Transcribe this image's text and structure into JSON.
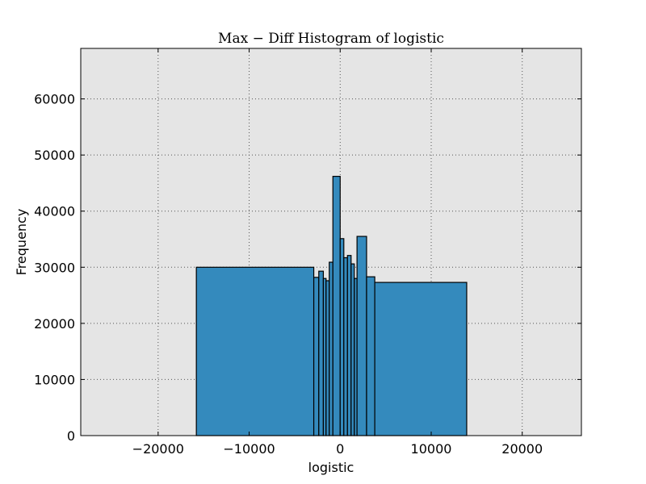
{
  "chart_data": {
    "type": "bar",
    "title": "Max − Diff Histogram of logistic",
    "xlabel": "logistic",
    "ylabel": "Frequency",
    "xlim": [
      -28500,
      26500
    ],
    "ylim": [
      0,
      69000
    ],
    "grid": true,
    "colors": {
      "bar_fill": "#348ABD",
      "bar_edge": "#000000",
      "plot_bg": "#E5E5E5",
      "grid": "#555555"
    },
    "xticks": [
      -20000,
      -10000,
      0,
      10000,
      20000
    ],
    "xtick_labels": [
      "−20000",
      "−10000",
      "0",
      "10000",
      "20000"
    ],
    "yticks": [
      0,
      10000,
      20000,
      30000,
      40000,
      50000,
      60000
    ],
    "ytick_labels": [
      "0",
      "10000",
      "20000",
      "30000",
      "40000",
      "50000",
      "60000"
    ],
    "bins": [
      {
        "x0": -15800,
        "x1": -2900,
        "value": 30000
      },
      {
        "x0": -2900,
        "x1": -2350,
        "value": 28200
      },
      {
        "x0": -2350,
        "x1": -1850,
        "value": 29300
      },
      {
        "x0": -1850,
        "x1": -1550,
        "value": 28000
      },
      {
        "x0": -1550,
        "x1": -1200,
        "value": 27600
      },
      {
        "x0": -1200,
        "x1": -800,
        "value": 30900
      },
      {
        "x0": -800,
        "x1": 0,
        "value": 46200
      },
      {
        "x0": 0,
        "x1": 400,
        "value": 35100
      },
      {
        "x0": 400,
        "x1": 800,
        "value": 31700
      },
      {
        "x0": 800,
        "x1": 1200,
        "value": 32100
      },
      {
        "x0": 1200,
        "x1": 1550,
        "value": 30600
      },
      {
        "x0": 1550,
        "x1": 1850,
        "value": 28000
      },
      {
        "x0": 1850,
        "x1": 2900,
        "value": 35500
      },
      {
        "x0": 2900,
        "x1": 3800,
        "value": 28300
      },
      {
        "x0": 3800,
        "x1": 13900,
        "value": 27300
      }
    ]
  }
}
